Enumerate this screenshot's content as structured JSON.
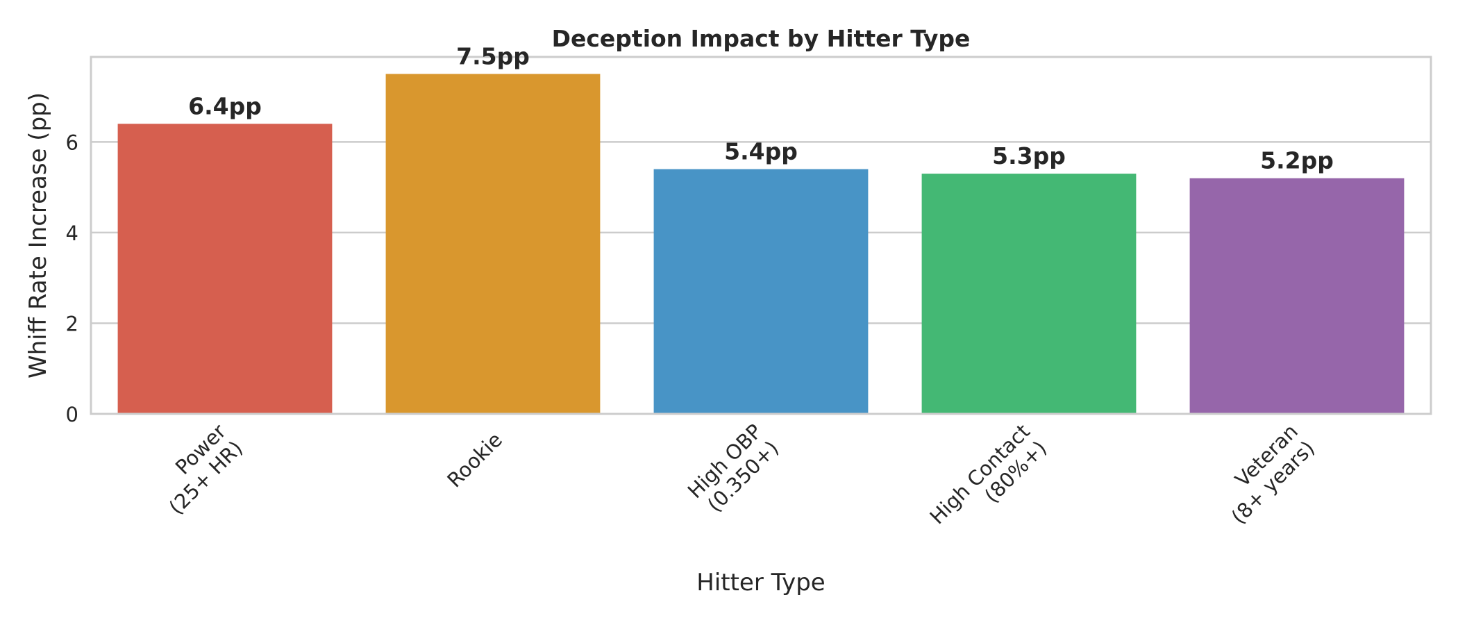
{
  "chart_data": {
    "type": "bar",
    "title": "Deception Impact by Hitter Type",
    "xlabel": "Hitter Type",
    "ylabel": "Whiff Rate Increase (pp)",
    "categories": [
      [
        "Power",
        "(25+ HR)"
      ],
      [
        "Rookie"
      ],
      [
        "High OBP",
        "(0.350+)"
      ],
      [
        "High Contact",
        "(80%+)"
      ],
      [
        "Veteran",
        "(8+ years)"
      ]
    ],
    "values": [
      6.4,
      7.5,
      5.4,
      5.3,
      5.2
    ],
    "value_labels": [
      "6.4pp",
      "7.5pp",
      "5.4pp",
      "5.3pp",
      "5.2pp"
    ],
    "colors": [
      "#d65f4f",
      "#d9972e",
      "#4894c6",
      "#44b874",
      "#9666aa"
    ],
    "ylim": [
      0,
      7.875
    ],
    "yticks": [
      0,
      2,
      4,
      6
    ],
    "grid": true,
    "legend": "none"
  }
}
